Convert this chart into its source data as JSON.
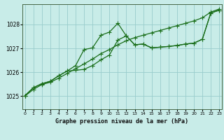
{
  "title": "Graphe pression niveau de la mer (hPa)",
  "background_color": "#c8ece8",
  "grid_color": "#99cccc",
  "line_color": "#1a6e1a",
  "x_ticks": [
    0,
    1,
    2,
    3,
    4,
    5,
    6,
    7,
    8,
    9,
    10,
    11,
    12,
    13,
    14,
    15,
    16,
    17,
    18,
    19,
    20,
    21,
    22,
    23
  ],
  "y_ticks": [
    1025,
    1026,
    1027,
    1028
  ],
  "ylim": [
    1024.45,
    1028.85
  ],
  "xlim": [
    -0.3,
    23.3
  ],
  "series1": [
    1025.0,
    1025.28,
    1025.48,
    1025.58,
    1025.75,
    1025.95,
    1026.15,
    1026.35,
    1026.55,
    1026.78,
    1026.95,
    1027.15,
    1027.32,
    1027.45,
    1027.55,
    1027.65,
    1027.75,
    1027.85,
    1027.95,
    1028.05,
    1028.15,
    1028.28,
    1028.52,
    1028.65
  ],
  "series2": [
    1025.02,
    1025.35,
    1025.52,
    1025.62,
    1025.85,
    1026.05,
    1026.28,
    1026.95,
    1027.02,
    1027.55,
    1027.68,
    1028.05,
    1027.52,
    1027.15,
    1027.18,
    1027.02,
    1027.05,
    1027.08,
    1027.12,
    1027.18,
    1027.22,
    1027.38,
    1028.48,
    1028.6
  ],
  "series3": [
    1025.02,
    1025.35,
    1025.52,
    1025.62,
    1025.85,
    1026.05,
    1026.08,
    1026.12,
    1026.28,
    1026.52,
    1026.72,
    1027.35,
    1027.52,
    1027.15,
    1027.18,
    1027.02,
    1027.05,
    1027.08,
    1027.12,
    1027.18,
    1027.22,
    1027.38,
    1028.48,
    1028.6
  ],
  "marker": "+",
  "markersize": 4,
  "linewidth": 0.9
}
